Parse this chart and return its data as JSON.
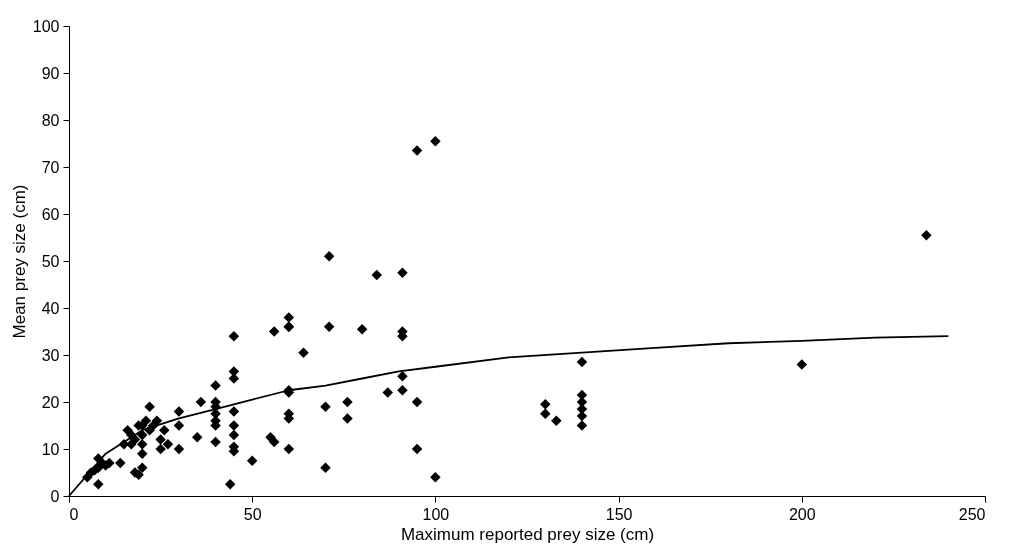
{
  "chart_data": {
    "type": "scatter",
    "xlabel": "Maximum reported prey size (cm)",
    "ylabel": "Mean prey size (cm)",
    "xlim": [
      0,
      250
    ],
    "ylim": [
      0,
      100
    ],
    "xticks": [
      0,
      50,
      100,
      150,
      200,
      250
    ],
    "yticks": [
      0,
      10,
      20,
      30,
      40,
      50,
      60,
      70,
      80,
      90,
      100
    ],
    "grid": false,
    "marker": "diamond",
    "series": [
      {
        "color": "#000000",
        "x": [
          5,
          6,
          7,
          8,
          8,
          8,
          9,
          10,
          11,
          14,
          15,
          16,
          17,
          17,
          18,
          18,
          19,
          19,
          20,
          20,
          20,
          20,
          20,
          21,
          22,
          22,
          23,
          24,
          25,
          25,
          26,
          27,
          30,
          30,
          30,
          35,
          36,
          40,
          40,
          40,
          40,
          40,
          40,
          40,
          44,
          45,
          45,
          45,
          45,
          45,
          45,
          45,
          45,
          50,
          55,
          56,
          56,
          60,
          60,
          60,
          60,
          60,
          60,
          60,
          60,
          64,
          70,
          70,
          71,
          71,
          76,
          76,
          80,
          84,
          87,
          91,
          91,
          91,
          91,
          91,
          95,
          95,
          95,
          100,
          100,
          130,
          130,
          133,
          140,
          140,
          140,
          140,
          140,
          140,
          200,
          234
        ],
        "values": [
          4,
          5,
          5.5,
          2.5,
          6,
          8,
          7,
          6.5,
          7,
          7,
          11,
          14,
          11,
          13,
          5,
          12,
          15,
          4.5,
          6,
          9,
          11,
          13,
          15,
          16,
          19,
          14,
          15,
          16,
          12,
          10,
          14,
          11,
          10,
          15,
          18,
          12.5,
          20,
          23.5,
          20,
          19,
          17.5,
          16,
          15,
          11.5,
          2.5,
          34,
          26.5,
          25,
          18,
          15,
          13,
          10.5,
          9.5,
          7.5,
          12.5,
          11.5,
          35,
          38,
          36,
          36,
          22.5,
          22,
          17.5,
          16.5,
          10,
          30.5,
          19,
          6,
          51,
          36,
          20,
          16.5,
          35.5,
          47,
          22,
          47.5,
          35,
          34,
          25.5,
          22.5,
          73.5,
          20,
          10,
          75.5,
          4,
          19.5,
          17.5,
          16,
          28.5,
          21.5,
          20,
          18.5,
          17,
          15,
          28,
          55.5
        ]
      },
      {
        "color": "#000000",
        "type": "line",
        "marker": "none",
        "line_style": "solid",
        "x": [
          0,
          10,
          20,
          30,
          40,
          50,
          60,
          70,
          80,
          90,
          100,
          120,
          140,
          160,
          180,
          200,
          220,
          240
        ],
        "values": [
          0,
          9,
          14,
          16.5,
          18.5,
          20.5,
          22.5,
          23.5,
          25,
          26.5,
          27.5,
          29.5,
          30.5,
          31.5,
          32.5,
          33,
          33.7,
          34
        ]
      }
    ]
  }
}
